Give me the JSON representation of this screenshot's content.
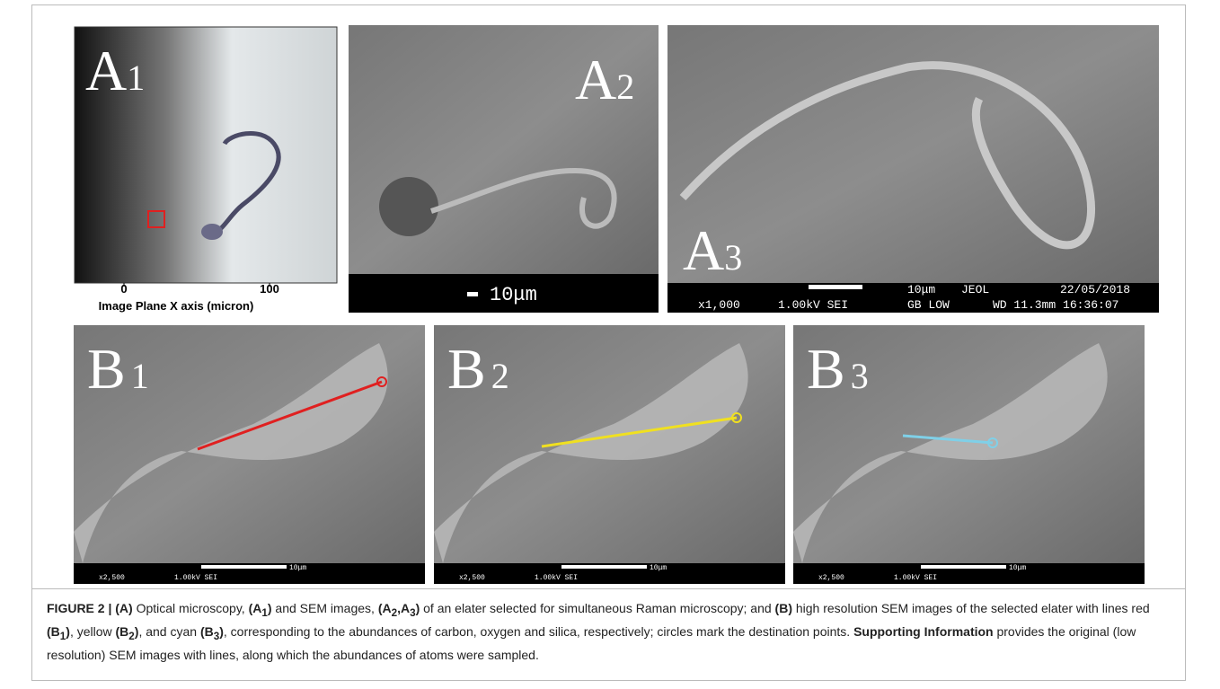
{
  "panels": [
    {
      "label": "A",
      "sub": "1",
      "ticks": [
        "0",
        "100"
      ],
      "axis_label": "Image Plane X axis (micron)"
    },
    {
      "label": "A",
      "sub": "2",
      "scale": "10μm"
    },
    {
      "label": "A",
      "sub": "3",
      "info": [
        "10μm",
        "JEOL",
        "22/05/2018",
        "x1,000",
        "1.00kV SEI",
        "GB LOW",
        "WD 11.3mm 16:36:07"
      ]
    },
    {
      "label": "B",
      "sub": "1",
      "scale": "10μm",
      "mag": "x2,500",
      "kv": "1.00kV SEI"
    },
    {
      "label": "B",
      "sub": "2",
      "scale": "10μm",
      "mag": "x2,500",
      "kv": "1.00kV SEI"
    },
    {
      "label": "B",
      "sub": "3",
      "scale": "10μm",
      "mag": "x2,500",
      "kv": "1.00kV SEI"
    }
  ],
  "caption": [
    "FIGURE 2 | (A)",
    " Optical microscopy, ",
    "(A",
    "1",
    ")",
    " and SEM images, ",
    "(A",
    "2",
    ",A",
    "3",
    ")",
    " of an elater selected for simultaneous Raman microscopy; and ",
    "(B)",
    " high resolution SEM images of the selected elater with lines red ",
    "(B",
    "1",
    ")",
    ", yellow ",
    "(B",
    "2",
    ")",
    ", and cyan ",
    "(B",
    "3",
    ")",
    ", corresponding to the abundances of carbon, oxygen and silica, respectively; circles mark the destination points. ",
    "Supporting Information",
    " provides the original (low resolution) SEM images with lines, along which the abundances of atoms were sampled."
  ]
}
